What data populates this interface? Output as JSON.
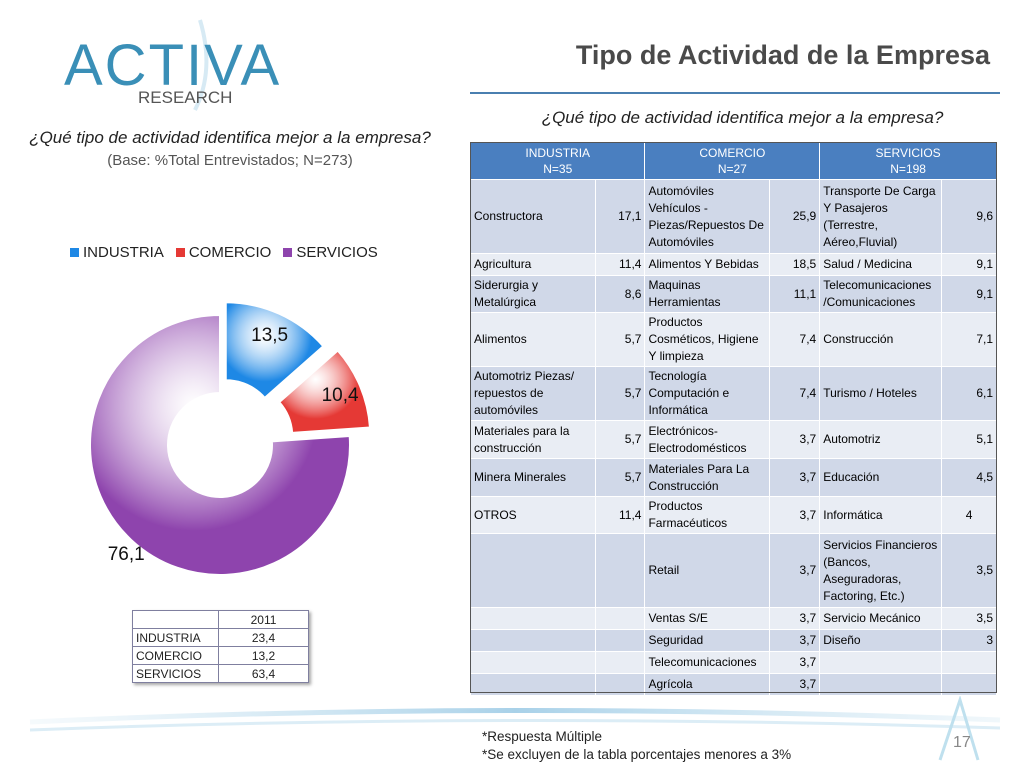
{
  "logo": {
    "word": "ACTIVA",
    "sub": "RESEARCH"
  },
  "page_title": "Tipo de Actividad de la Empresa",
  "left_question": "¿Qué tipo de actividad identifica mejor a la empresa?",
  "left_base": "(Base: %Total Entrevistados; N=273)",
  "right_question": "¿Qué tipo de actividad identifica mejor a la empresa?",
  "colors": {
    "industria": "#1e88e5",
    "comercio": "#e53935",
    "servicios": "#8e44ad",
    "header": "#4a7fc0"
  },
  "chart_data": {
    "type": "pie",
    "categories": [
      "INDUSTRIA",
      "COMERCIO",
      "SERVICIOS"
    ],
    "values": [
      13.5,
      10.4,
      76.1
    ],
    "data_labels": [
      "13,5",
      "10,4",
      "76,1"
    ],
    "legend": "top",
    "donut": true
  },
  "year_table": {
    "header": "2011",
    "rows": [
      {
        "label": "INDUSTRIA",
        "value": "23,4"
      },
      {
        "label": "COMERCIO",
        "value": "13,2"
      },
      {
        "label": "SERVICIOS",
        "value": "63,4"
      }
    ]
  },
  "main_table": {
    "headers": [
      {
        "name": "INDUSTRIA",
        "n": "N=35"
      },
      {
        "name": "COMERCIO",
        "n": "N=27"
      },
      {
        "name": "SERVICIOS",
        "n": "N=198"
      }
    ],
    "rows": [
      [
        "Constructora",
        "17,1",
        "Automóviles Vehículos - Piezas/Repuestos De Automóviles",
        "25,9",
        "Transporte De Carga Y Pasajeros (Terrestre, Aéreo,Fluvial)",
        "9,6"
      ],
      [
        "Agricultura",
        "11,4",
        "Alimentos Y Bebidas",
        "18,5",
        "Salud / Medicina",
        "9,1"
      ],
      [
        "Siderurgia y Metalúrgica",
        "8,6",
        "Maquinas Herramientas",
        "11,1",
        "Telecomunicaciones /Comunicaciones",
        "9,1"
      ],
      [
        "Alimentos",
        "5,7",
        "Productos Cosméticos, Higiene Y limpieza",
        "7,4",
        "Construcción",
        "7,1"
      ],
      [
        "Automotriz Piezas/ repuestos de automóviles",
        "5,7",
        "Tecnología Computación e Informática",
        "7,4",
        "Turismo / Hoteles",
        "6,1"
      ],
      [
        "Materiales para la construcción",
        "5,7",
        "Electrónicos- Electrodomésticos",
        "3,7",
        "Automotriz",
        "5,1"
      ],
      [
        "Minera  Minerales",
        "5,7",
        "Materiales Para La Construcción",
        "3,7",
        "Educación",
        "4,5"
      ],
      [
        "OTROS",
        "11,4",
        "Productos Farmacéuticos",
        "3,7",
        "Informática",
        "4"
      ],
      [
        "",
        "",
        "Retail",
        "3,7",
        "Servicios Financieros (Bancos, Aseguradoras, Factoring, Etc.)",
        "3,5"
      ],
      [
        "",
        "",
        "Ventas  S/E",
        "3,7",
        "Servicio Mecánico",
        "3,5"
      ],
      [
        "",
        "",
        "Seguridad",
        "3,7",
        "Diseño",
        "3"
      ],
      [
        "",
        "",
        "Telecomunicaciones",
        "3,7",
        "",
        ""
      ],
      [
        "",
        "",
        "Agrícola",
        "3,7",
        "",
        ""
      ]
    ]
  },
  "notes": [
    "*Respuesta Múltiple",
    "*Se excluyen de la tabla porcentajes menores a 3%"
  ],
  "page_number": "17"
}
